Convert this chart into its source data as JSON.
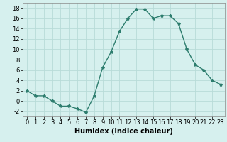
{
  "x": [
    0,
    1,
    2,
    3,
    4,
    5,
    6,
    7,
    8,
    9,
    10,
    11,
    12,
    13,
    14,
    15,
    16,
    17,
    18,
    19,
    20,
    21,
    22,
    23
  ],
  "y": [
    2,
    1,
    1,
    0,
    -1,
    -1,
    -1.5,
    -2.2,
    1,
    6.5,
    9.5,
    13.5,
    16,
    17.8,
    17.8,
    16,
    16.5,
    16.5,
    15,
    10,
    7,
    6,
    4,
    3.2
  ],
  "line_color": "#2d7d6e",
  "marker": "*",
  "marker_size": 3,
  "bg_color": "#d6f0ee",
  "grid_color": "#b8dbd8",
  "xlabel": "Humidex (Indice chaleur)",
  "xlim": [
    -0.5,
    23.5
  ],
  "ylim": [
    -3,
    19
  ],
  "yticks": [
    -2,
    0,
    2,
    4,
    6,
    8,
    10,
    12,
    14,
    16,
    18
  ],
  "xticks": [
    0,
    1,
    2,
    3,
    4,
    5,
    6,
    7,
    8,
    9,
    10,
    11,
    12,
    13,
    14,
    15,
    16,
    17,
    18,
    19,
    20,
    21,
    22,
    23
  ],
  "xlabel_fontsize": 7,
  "tick_fontsize": 6,
  "linewidth": 1.0
}
